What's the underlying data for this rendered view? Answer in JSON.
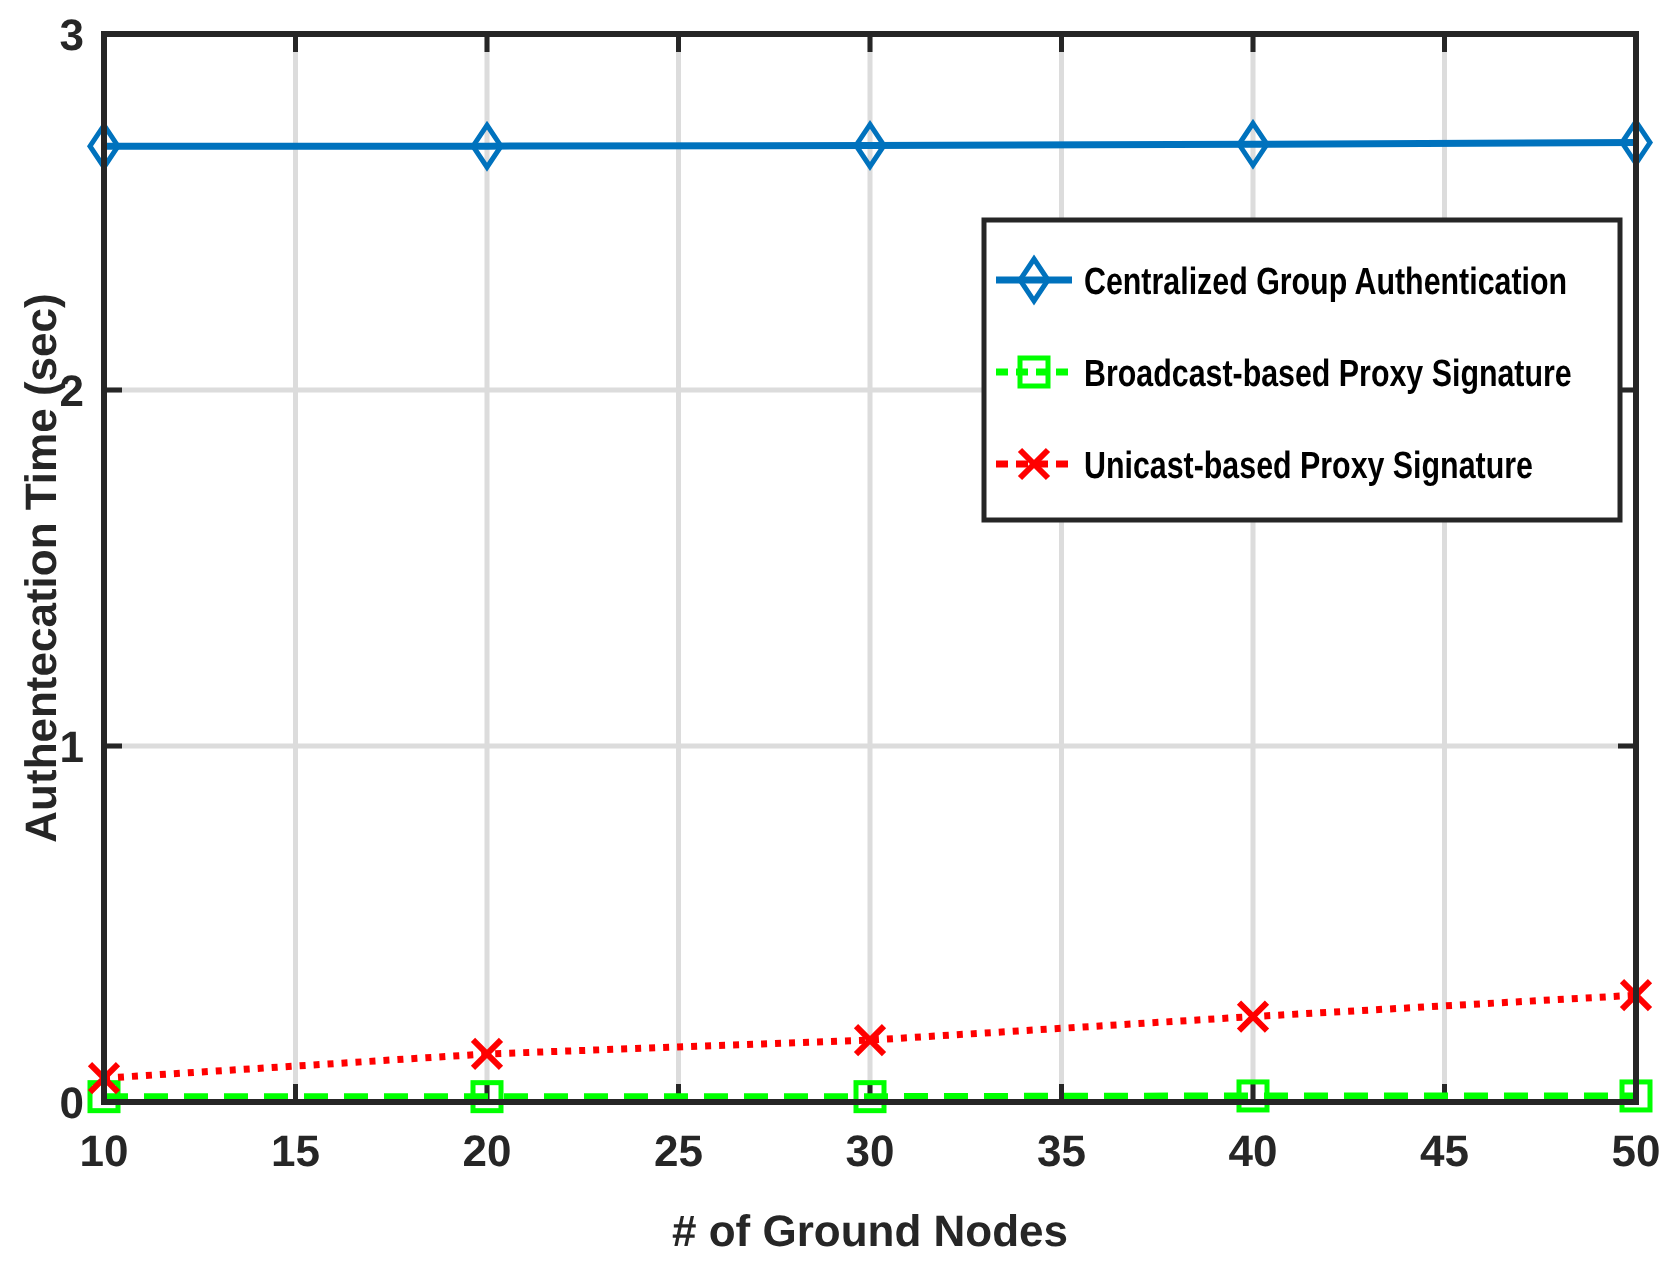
{
  "chart_data": {
    "type": "line",
    "xlabel": "# of Ground Nodes",
    "ylabel": "Authentecation Time (sec)",
    "x": [
      10,
      20,
      30,
      40,
      50
    ],
    "xlim": [
      10,
      50
    ],
    "xticks": [
      10,
      15,
      20,
      25,
      30,
      35,
      40,
      45,
      50
    ],
    "ylim": [
      0,
      3
    ],
    "yticks": [
      0,
      1,
      2,
      3
    ],
    "grid": true,
    "legend": "top right",
    "series": [
      {
        "name": "Centralized Group Authentication",
        "color": "#0072bd",
        "values": [
          2.685,
          2.685,
          2.687,
          2.69,
          2.695
        ],
        "marker": "diamond",
        "line_style": "solid"
      },
      {
        "name": "Broadcast-based Proxy Signature",
        "color": "#00ff00",
        "values": [
          0.015,
          0.015,
          0.015,
          0.017,
          0.017
        ],
        "marker": "square",
        "line_style": "dashed"
      },
      {
        "name": "Unicast-based Proxy Signature",
        "color": "#ff0000",
        "values": [
          0.067,
          0.135,
          0.174,
          0.24,
          0.3
        ],
        "marker": "cross",
        "line_style": "dotted"
      }
    ]
  }
}
